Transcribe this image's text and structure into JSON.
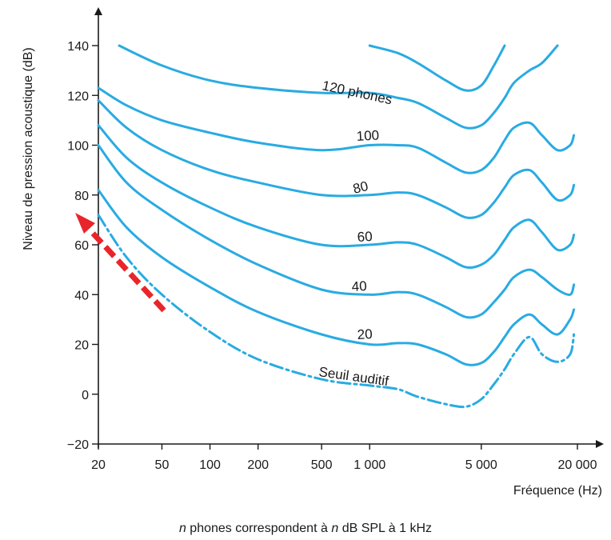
{
  "chart_data": {
    "type": "line",
    "xlabel": "Fréquence (Hz)",
    "ylabel": "Niveau de pression acoustique (dB)",
    "x_scale": "log",
    "xlim": [
      20,
      20000
    ],
    "ylim": [
      -20,
      140
    ],
    "x_ticks": [
      20,
      50,
      100,
      200,
      500,
      1000,
      5000,
      20000
    ],
    "x_tick_labels": [
      "20",
      "50",
      "100",
      "200",
      "500",
      "1 000",
      "5 000",
      "20 000"
    ],
    "y_ticks": [
      -20,
      0,
      20,
      40,
      60,
      80,
      100,
      120,
      140
    ],
    "y_tick_labels": [
      "−20",
      "0",
      "20",
      "40",
      "60",
      "80",
      "100",
      "120",
      "140"
    ],
    "grid": false,
    "line_color": "#29ABE2",
    "annotation_color": "#E8262A",
    "series": [
      {
        "name": "Seuil auditif",
        "style": "dash-dot",
        "x": [
          20,
          30,
          50,
          100,
          200,
          500,
          1000,
          1500,
          2000,
          3000,
          4000,
          5000,
          6000,
          7000,
          8000,
          10000,
          12000,
          15000,
          18000,
          19000
        ],
        "y": [
          72,
          55,
          40,
          25,
          14,
          6,
          3.5,
          2,
          -1,
          -4,
          -5,
          -2,
          4,
          10,
          16,
          23,
          16,
          13,
          16,
          24
        ]
      },
      {
        "name": "20",
        "x": [
          20,
          30,
          50,
          100,
          200,
          500,
          1000,
          1500,
          2000,
          3000,
          4000,
          5000,
          6000,
          7000,
          8000,
          10000,
          12000,
          15000,
          18000,
          19000
        ],
        "y": [
          82,
          67,
          55,
          43,
          33,
          24,
          20,
          20.5,
          20,
          16,
          12,
          12.5,
          17,
          23,
          28,
          32,
          28,
          24,
          30,
          34
        ]
      },
      {
        "name": "40",
        "x": [
          20,
          30,
          50,
          100,
          200,
          500,
          1000,
          1500,
          2000,
          3000,
          4000,
          5000,
          6000,
          7000,
          8000,
          10000,
          12000,
          15000,
          18000,
          19000
        ],
        "y": [
          100,
          85,
          74,
          62,
          52,
          42,
          40,
          41,
          40,
          35,
          31,
          32,
          37,
          42,
          47,
          50,
          47,
          42,
          40,
          44
        ]
      },
      {
        "name": "60",
        "x": [
          20,
          30,
          50,
          100,
          200,
          500,
          1000,
          1500,
          2000,
          3000,
          4000,
          5000,
          6000,
          7000,
          8000,
          10000,
          12000,
          15000,
          18000,
          19000
        ],
        "y": [
          108,
          95,
          85,
          75,
          67,
          60,
          60,
          61,
          60,
          55,
          51,
          52,
          56,
          62,
          67,
          70,
          65,
          58,
          60,
          64
        ]
      },
      {
        "name": "80",
        "x": [
          20,
          30,
          50,
          100,
          200,
          500,
          1000,
          1500,
          2000,
          3000,
          4000,
          5000,
          6000,
          7000,
          8000,
          10000,
          12000,
          15000,
          18000,
          19000
        ],
        "y": [
          118,
          107,
          98,
          90,
          85,
          80,
          80,
          81,
          80,
          75,
          71,
          72,
          77,
          83,
          88,
          90,
          85,
          78,
          80,
          84
        ]
      },
      {
        "name": "100",
        "x": [
          20,
          30,
          50,
          100,
          200,
          500,
          1000,
          1500,
          2000,
          3000,
          4000,
          5000,
          6000,
          7000,
          8000,
          10000,
          12000,
          15000,
          18000,
          19000
        ],
        "y": [
          123,
          116,
          110,
          105,
          101,
          98,
          100,
          100,
          99,
          93,
          89,
          90,
          95,
          102,
          107,
          109,
          104,
          98,
          100,
          104
        ]
      },
      {
        "name": "120 phones",
        "x": [
          27,
          50,
          100,
          200,
          500,
          1000,
          1500,
          2000,
          3000,
          4000,
          5000,
          6000,
          7000,
          8000,
          10000,
          12000,
          15000
        ],
        "y": [
          140,
          132,
          126,
          123,
          121,
          121,
          119,
          117,
          111,
          107,
          108,
          113,
          119,
          125,
          130,
          133,
          140
        ]
      },
      {
        "name": "",
        "label": false,
        "x": [
          1000,
          1500,
          2000,
          3000,
          4000,
          5000,
          6000,
          7000
        ],
        "y": [
          140,
          137,
          133,
          126,
          122,
          124,
          132,
          140
        ]
      }
    ],
    "curve_labels": [
      "120 phones",
      "100",
      "80",
      "60",
      "40",
      "20",
      "Seuil auditif"
    ],
    "caption": {
      "n1": "n",
      "text1": "phones correspondent à",
      "n2": "n",
      "text2": "dB SPL à 1 kHz"
    }
  }
}
